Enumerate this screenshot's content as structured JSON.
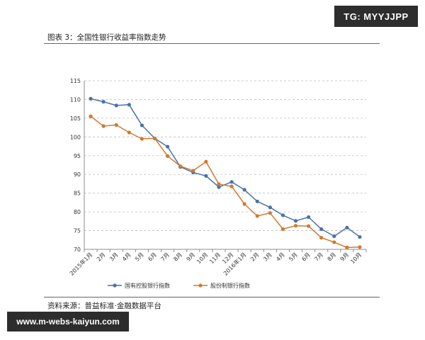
{
  "watermark_top": "TG: MYYJJPP",
  "watermark_bottom": "www.m-webs-kaiyun.com",
  "figure_title": "图表 3：全国性银行收益率指数走势",
  "source": "资料来源：普益标准·金融数据平台",
  "chart_data": {
    "type": "line",
    "title": "",
    "xlabel": "",
    "ylabel": "",
    "ylim": [
      70,
      115
    ],
    "yticks": [
      70,
      75,
      80,
      85,
      90,
      95,
      100,
      105,
      110,
      115
    ],
    "grid": "horizontal-dashed",
    "legend": "bottom-center",
    "categories": [
      "2015年1月",
      "2月",
      "3月",
      "4月",
      "5月",
      "6月",
      "7月",
      "8月",
      "9月",
      "10月",
      "11月",
      "12月",
      "2016年1月",
      "2月",
      "3月",
      "4月",
      "5月",
      "6月",
      "7月",
      "8月",
      "9月",
      "10月"
    ],
    "series": [
      {
        "name": "国有控股银行指数",
        "color": "#4a72a8",
        "values": [
          110.2,
          109.4,
          108.4,
          108.6,
          103.1,
          99.6,
          97.4,
          92.0,
          90.5,
          89.6,
          86.6,
          88.0,
          85.9,
          82.8,
          81.2,
          79.1,
          77.6,
          78.6,
          75.4,
          73.5,
          75.8,
          73.3
        ]
      },
      {
        "name": "股份制银行指数",
        "color": "#d07a2e",
        "values": [
          105.5,
          102.9,
          103.2,
          101.2,
          99.5,
          99.6,
          94.9,
          92.2,
          91.0,
          93.4,
          87.4,
          86.8,
          82.1,
          78.9,
          79.7,
          75.4,
          76.3,
          76.2,
          73.1,
          71.9,
          70.5,
          70.6
        ]
      }
    ]
  }
}
